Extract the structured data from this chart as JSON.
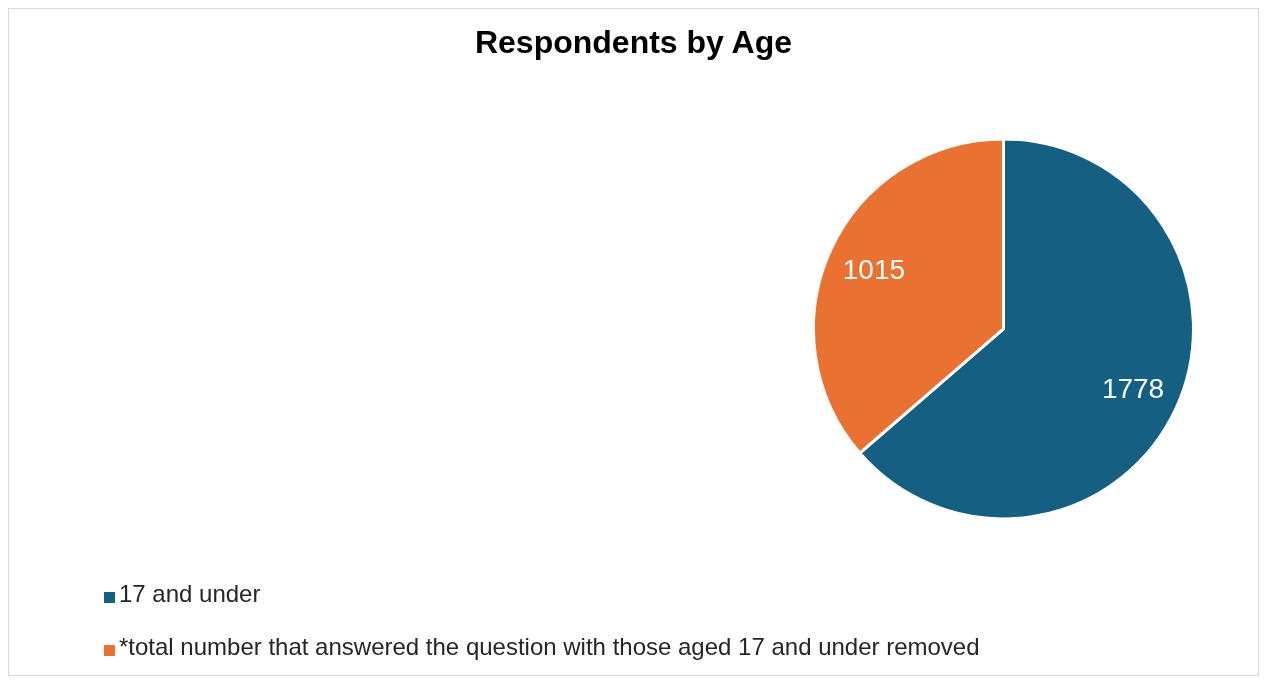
{
  "chart_data": {
    "type": "pie",
    "title": "Respondents by Age",
    "categories": [
      "17 and under",
      "*total number that answered the question with those aged 17 and under removed"
    ],
    "values": [
      1778,
      1015
    ],
    "colors": [
      "#156082",
      "#e97132"
    ],
    "data_labels": true,
    "legend": "bottom left"
  }
}
